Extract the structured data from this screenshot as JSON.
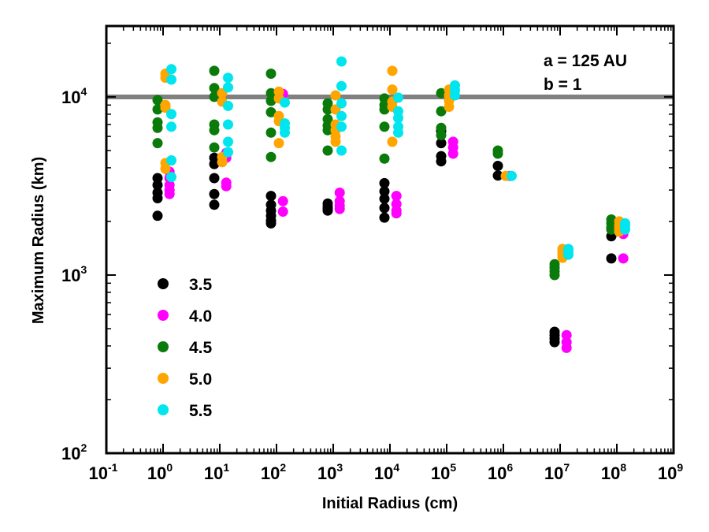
{
  "chart_data": {
    "type": "scatter",
    "xlabel": "Initial Radius (cm)",
    "ylabel": "Maximum Radius (km)",
    "xscale": "log",
    "yscale": "log",
    "xlim": [
      0.1,
      1000000000
    ],
    "ylim": [
      100,
      25000
    ],
    "x_ticks": [
      {
        "base": "10",
        "exp": "-1"
      },
      {
        "base": "10",
        "exp": "0"
      },
      {
        "base": "10",
        "exp": "1"
      },
      {
        "base": "10",
        "exp": "2"
      },
      {
        "base": "10",
        "exp": "3"
      },
      {
        "base": "10",
        "exp": "4"
      },
      {
        "base": "10",
        "exp": "5"
      },
      {
        "base": "10",
        "exp": "6"
      },
      {
        "base": "10",
        "exp": "7"
      },
      {
        "base": "10",
        "exp": "8"
      },
      {
        "base": "10",
        "exp": "9"
      }
    ],
    "y_ticks": [
      {
        "base": "10",
        "exp": "2"
      },
      {
        "base": "10",
        "exp": "3"
      },
      {
        "base": "10",
        "exp": "4"
      }
    ],
    "reference_line": {
      "y": 10000,
      "color": "#808080"
    },
    "annotations": [
      "a = 125 AU",
      "b = 1"
    ],
    "legend_position": "lower-left",
    "grid": false,
    "series": [
      {
        "name": "3.5",
        "color": "#000000",
        "points": [
          [
            0.8,
            3500
          ],
          [
            0.8,
            3200
          ],
          [
            0.8,
            2900
          ],
          [
            0.8,
            2700
          ],
          [
            0.8,
            2150
          ],
          [
            8,
            4550
          ],
          [
            8,
            4200
          ],
          [
            8,
            3500
          ],
          [
            8,
            2850
          ],
          [
            8,
            2480
          ],
          [
            80,
            2780
          ],
          [
            80,
            2480
          ],
          [
            80,
            2300
          ],
          [
            80,
            2150
          ],
          [
            80,
            2020
          ],
          [
            80,
            1950
          ],
          [
            800,
            2520
          ],
          [
            800,
            2420
          ],
          [
            800,
            2350
          ],
          [
            800,
            2300
          ],
          [
            8000,
            3280
          ],
          [
            8000,
            2950
          ],
          [
            8000,
            2680
          ],
          [
            8000,
            2380
          ],
          [
            8000,
            2100
          ],
          [
            80000,
            6450
          ],
          [
            80000,
            5500
          ],
          [
            80000,
            4650
          ],
          [
            80000,
            4350
          ],
          [
            800000,
            4100
          ],
          [
            800000,
            3620
          ],
          [
            8000000,
            480
          ],
          [
            8000000,
            460
          ],
          [
            8000000,
            440
          ],
          [
            8000000,
            420
          ],
          [
            80000000,
            1650
          ],
          [
            80000000,
            1240
          ]
        ]
      },
      {
        "name": "4.0",
        "color": "#ff00ff",
        "points": [
          [
            1.3,
            3800
          ],
          [
            1.3,
            3500
          ],
          [
            1.3,
            3200
          ],
          [
            1.3,
            3000
          ],
          [
            1.3,
            2850
          ],
          [
            13,
            4850
          ],
          [
            13,
            4550
          ],
          [
            13,
            3300
          ],
          [
            13,
            3150
          ],
          [
            130,
            10400
          ],
          [
            130,
            2600
          ],
          [
            130,
            2270
          ],
          [
            1300,
            2900
          ],
          [
            1300,
            2600
          ],
          [
            1300,
            2450
          ],
          [
            1300,
            2350
          ],
          [
            13000,
            2780
          ],
          [
            13000,
            2500
          ],
          [
            13000,
            2300
          ],
          [
            13000,
            2220
          ],
          [
            130000,
            5600
          ],
          [
            130000,
            5200
          ],
          [
            130000,
            4800
          ],
          [
            1300000,
            3600
          ],
          [
            13000000,
            460
          ],
          [
            13000000,
            420
          ],
          [
            13000000,
            390
          ],
          [
            130000000,
            1700
          ],
          [
            130000000,
            1240
          ]
        ]
      },
      {
        "name": "4.5",
        "color": "#0a7a0a",
        "points": [
          [
            0.8,
            9600
          ],
          [
            0.8,
            8500
          ],
          [
            0.8,
            7200
          ],
          [
            0.8,
            6700
          ],
          [
            0.8,
            5500
          ],
          [
            8,
            14000
          ],
          [
            8,
            11200
          ],
          [
            8,
            10000
          ],
          [
            8,
            7000
          ],
          [
            8,
            6500
          ],
          [
            8,
            5200
          ],
          [
            80,
            13500
          ],
          [
            80,
            10500
          ],
          [
            80,
            9500
          ],
          [
            80,
            8200
          ],
          [
            80,
            6300
          ],
          [
            80,
            4600
          ],
          [
            800,
            9200
          ],
          [
            800,
            8500
          ],
          [
            800,
            7500
          ],
          [
            800,
            6900
          ],
          [
            800,
            6500
          ],
          [
            800,
            5000
          ],
          [
            8000,
            9800
          ],
          [
            8000,
            9000
          ],
          [
            8000,
            8500
          ],
          [
            8000,
            6800
          ],
          [
            8000,
            4500
          ],
          [
            80000,
            10500
          ],
          [
            80000,
            8300
          ],
          [
            80000,
            6700
          ],
          [
            80000,
            6100
          ],
          [
            800000,
            5000
          ],
          [
            800000,
            4800
          ],
          [
            8000000,
            1150
          ],
          [
            8000000,
            1100
          ],
          [
            8000000,
            1050
          ],
          [
            8000000,
            1000
          ],
          [
            80000000,
            2050
          ],
          [
            80000000,
            1950
          ],
          [
            80000000,
            1850
          ],
          [
            80000000,
            1800
          ]
        ]
      },
      {
        "name": "5.0",
        "color": "#ffa500",
        "points": [
          [
            1.1,
            13500
          ],
          [
            1.1,
            12800
          ],
          [
            1.1,
            9000
          ],
          [
            1.1,
            8700
          ],
          [
            1.1,
            4250
          ],
          [
            1.1,
            3950
          ],
          [
            11,
            10500
          ],
          [
            11,
            9400
          ],
          [
            11,
            4600
          ],
          [
            11,
            4300
          ],
          [
            110,
            10700
          ],
          [
            110,
            9800
          ],
          [
            110,
            7800
          ],
          [
            110,
            7300
          ],
          [
            110,
            5500
          ],
          [
            1100,
            10200
          ],
          [
            1100,
            8500
          ],
          [
            1100,
            7000
          ],
          [
            1100,
            6500
          ],
          [
            1100,
            6000
          ],
          [
            1100,
            5600
          ],
          [
            11000,
            14000
          ],
          [
            11000,
            11000
          ],
          [
            11000,
            9400
          ],
          [
            11000,
            8800
          ],
          [
            11000,
            5600
          ],
          [
            110000,
            11000
          ],
          [
            110000,
            10200
          ],
          [
            110000,
            9500
          ],
          [
            110000,
            8800
          ],
          [
            1100000,
            3600
          ],
          [
            11000000,
            1400
          ],
          [
            11000000,
            1350
          ],
          [
            11000000,
            1300
          ],
          [
            11000000,
            1250
          ],
          [
            110000000,
            2000
          ],
          [
            110000000,
            1900
          ],
          [
            110000000,
            1820
          ],
          [
            110000000,
            1750
          ]
        ]
      },
      {
        "name": "5.5",
        "color": "#00e5ee",
        "points": [
          [
            1.4,
            14300
          ],
          [
            1.4,
            12500
          ],
          [
            1.4,
            8000
          ],
          [
            1.4,
            6800
          ],
          [
            1.4,
            4400
          ],
          [
            1.4,
            3550
          ],
          [
            14,
            12800
          ],
          [
            14,
            11300
          ],
          [
            14,
            8900
          ],
          [
            14,
            7000
          ],
          [
            14,
            5600
          ],
          [
            14,
            4900
          ],
          [
            140,
            9300
          ],
          [
            140,
            7100
          ],
          [
            140,
            6700
          ],
          [
            140,
            6300
          ],
          [
            1400,
            15800
          ],
          [
            1400,
            11500
          ],
          [
            1400,
            9200
          ],
          [
            1400,
            7800
          ],
          [
            1400,
            6800
          ],
          [
            1400,
            5000
          ],
          [
            14000,
            9900
          ],
          [
            14000,
            8300
          ],
          [
            14000,
            7600
          ],
          [
            14000,
            6800
          ],
          [
            14000,
            6300
          ],
          [
            140000,
            11600
          ],
          [
            140000,
            10900
          ],
          [
            140000,
            10200
          ],
          [
            1400000,
            3600
          ],
          [
            14000000,
            1400
          ],
          [
            14000000,
            1350
          ],
          [
            14000000,
            1300
          ],
          [
            140000000,
            1950
          ],
          [
            140000000,
            1880
          ],
          [
            140000000,
            1800
          ]
        ]
      }
    ]
  }
}
